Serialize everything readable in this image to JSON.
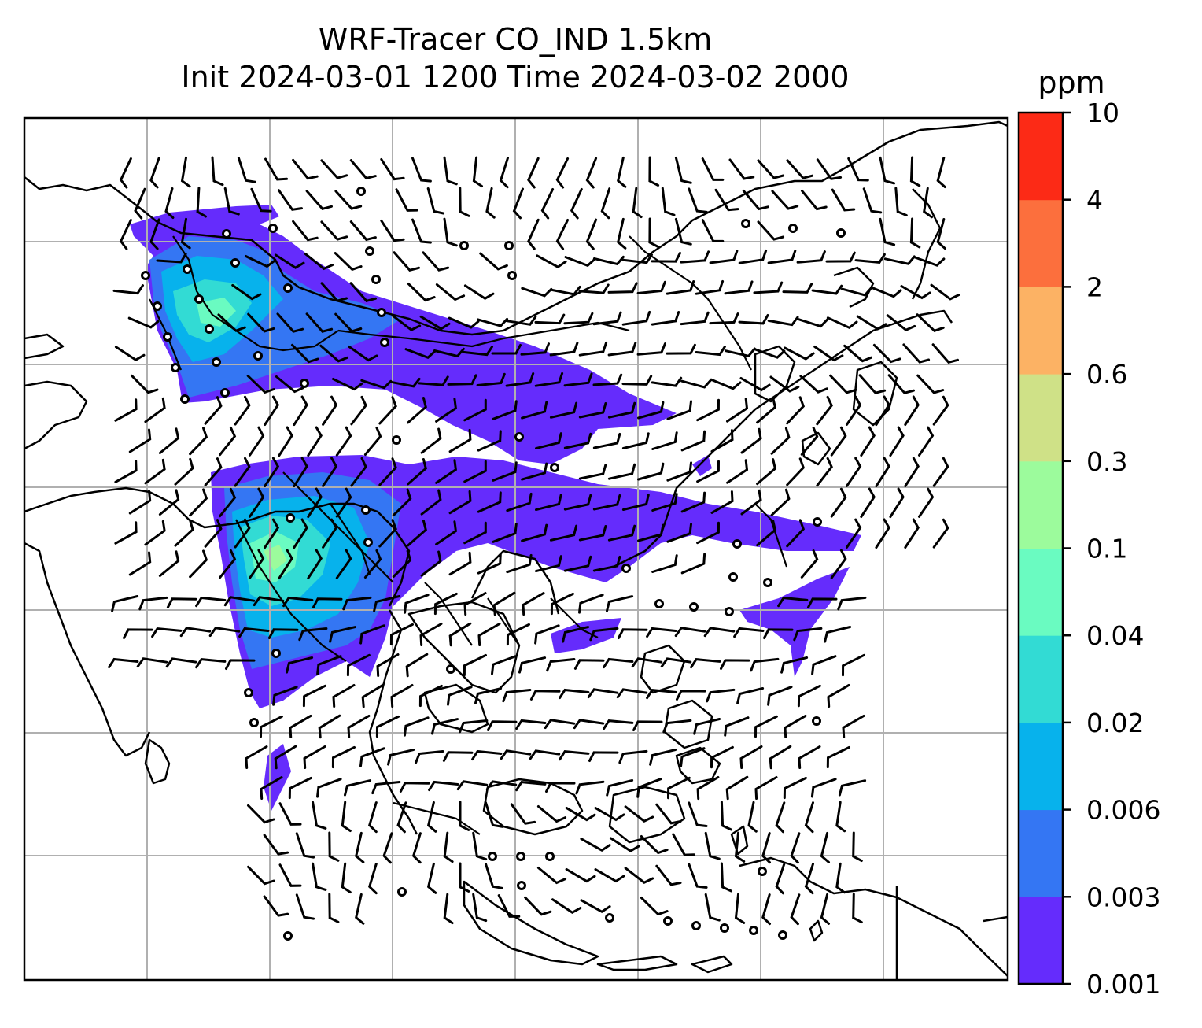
{
  "chart_data": {
    "type": "heatmap",
    "title_line1": "WRF-Tracer CO_IND 1.5km",
    "title_line2": "Init 2024-03-01 1200 Time 2024-03-02 2000",
    "colorbar": {
      "unit": "ppm",
      "levels": [
        "0.001",
        "0.003",
        "0.006",
        "0.02",
        "0.04",
        "0.1",
        "0.3",
        "0.6",
        "2",
        "4",
        "10"
      ],
      "colors": [
        "#652cfc",
        "#3476f3",
        "#07b2ec",
        "#32dbd4",
        "#6afbc1",
        "#9cfb9c",
        "#cfe187",
        "#fcb264",
        "#fc6f3d",
        "#fc2a16"
      ]
    },
    "overlays": [
      "filled tracer concentration",
      "wind barbs",
      "coastlines and borders",
      "lat/lon gridlines"
    ],
    "grid": true
  }
}
